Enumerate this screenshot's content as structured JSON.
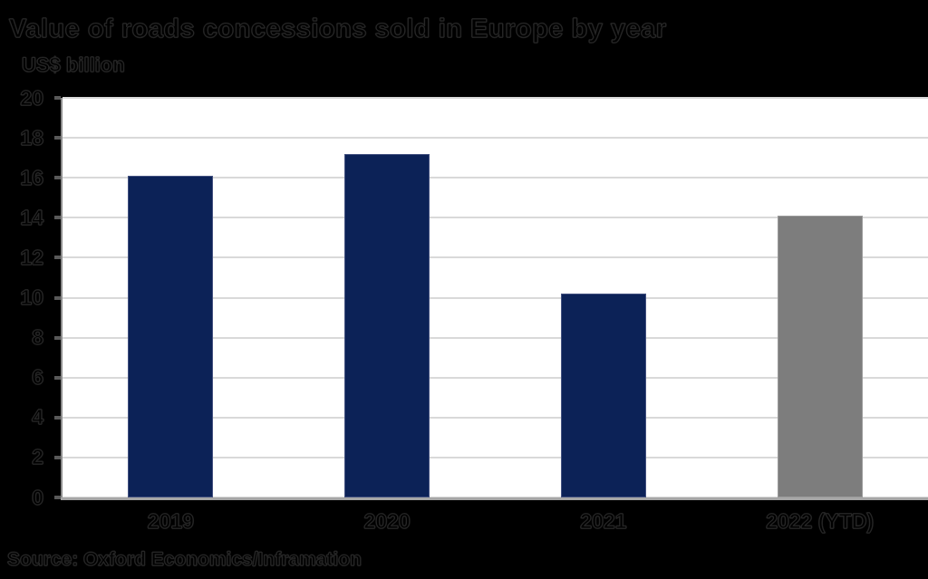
{
  "title": "Value of roads concessions sold in Europe by year",
  "subtitle": "US$ billion",
  "source": "Source: Oxford Economics/Inframation",
  "chart_data": {
    "type": "bar",
    "title": "Value of roads concessions sold in Europe by year",
    "ylabel": "US$ billion",
    "xlabel": "",
    "categories": [
      "2019",
      "2020",
      "2021",
      "2022 (YTD)"
    ],
    "values": [
      16.1,
      17.2,
      10.2,
      14.1
    ],
    "ylim": [
      0,
      20
    ],
    "ytick_step": 2,
    "ytick_labels": [
      "0",
      "2",
      "4",
      "6",
      "8",
      "10",
      "12",
      "14",
      "16",
      "18",
      "20"
    ],
    "grid": true,
    "legend_position": "none",
    "bar_colors": [
      "#0c2257",
      "#0c2257",
      "#0c2257",
      "#7d7d7d"
    ],
    "bar_border_colors": [
      "#435180",
      "#435180",
      "#435180",
      "#9b9b9b"
    ],
    "source": "Source: Oxford Economics/Inframation"
  },
  "colors": {
    "background": "#000000",
    "plot_background": "#ffffff",
    "gridline": "#d9d9d9",
    "y_axis_line": "#8c8c8c",
    "x_axis_line": "#a6a6a6",
    "tick_mark": "#595959",
    "bar_navy": "#0c2257",
    "bar_gray": "#7d7d7d",
    "text_outline": "#262626"
  }
}
